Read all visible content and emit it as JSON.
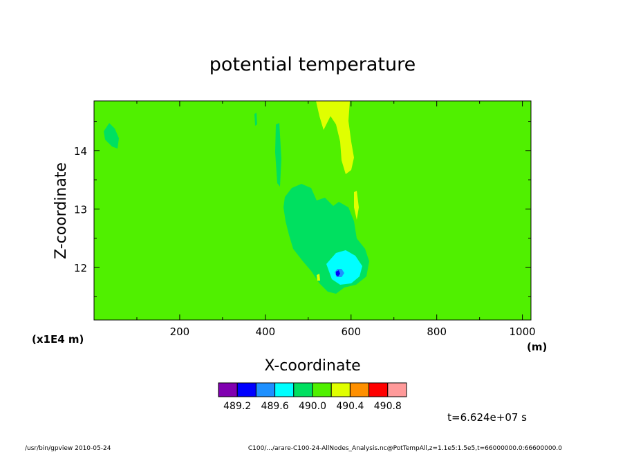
{
  "chart_data": {
    "type": "heatmap",
    "title": "potential temperature",
    "xlabel": "X-coordinate",
    "x_unit": "(m)",
    "ylabel": "Z-coordinate",
    "y_unit": "(x1E4 m)",
    "xlim": [
      0,
      1020
    ],
    "ylim": [
      11.1,
      14.85
    ],
    "x_ticks": [
      200,
      400,
      600,
      800,
      1000
    ],
    "y_ticks": [
      12,
      13,
      14
    ],
    "background_level": "490.0-490.2",
    "colorbar": {
      "colors": [
        "#8000b0",
        "#0000ff",
        "#1e90ff",
        "#00ffff",
        "#00e060",
        "#50f000",
        "#e0ff00",
        "#ff9000",
        "#ff0000",
        "#ff9a9a"
      ],
      "tick_labels": [
        "489.2",
        "489.6",
        "490.0",
        "490.4",
        "490.8"
      ]
    },
    "time_label": "t=6.624e+07 s"
  },
  "footer": {
    "left": "/usr/bin/gpview   2010-05-24",
    "right": "C100/.../arare-C100-24-AllNodes_Analysis.nc@PotTempAll,z=1.1e5:1.5e5,t=66000000.0:66600000.0"
  }
}
